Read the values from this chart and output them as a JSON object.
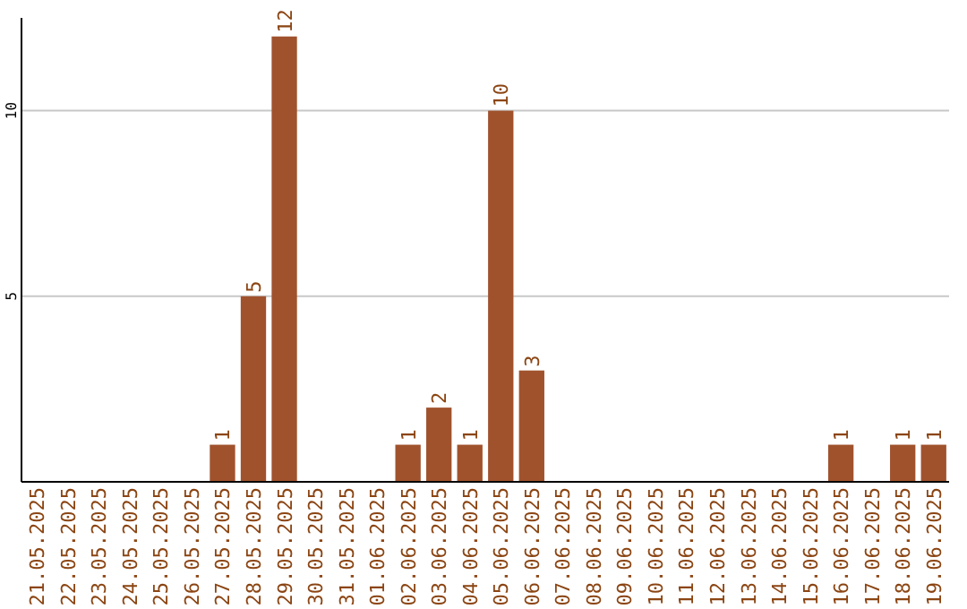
{
  "chart_data": {
    "type": "bar",
    "categories": [
      "21.05.2025",
      "22.05.2025",
      "23.05.2025",
      "24.05.2025",
      "25.05.2025",
      "26.05.2025",
      "27.05.2025",
      "28.05.2025",
      "29.05.2025",
      "30.05.2025",
      "31.05.2025",
      "01.06.2025",
      "02.06.2025",
      "03.06.2025",
      "04.06.2025",
      "05.06.2025",
      "06.06.2025",
      "07.06.2025",
      "08.06.2025",
      "09.06.2025",
      "10.06.2025",
      "11.06.2025",
      "12.06.2025",
      "13.06.2025",
      "14.06.2025",
      "15.06.2025",
      "16.06.2025",
      "17.06.2025",
      "18.06.2025",
      "19.06.2025"
    ],
    "values": [
      0,
      0,
      0,
      0,
      0,
      0,
      1,
      5,
      12,
      0,
      0,
      0,
      1,
      2,
      1,
      10,
      3,
      0,
      0,
      0,
      0,
      0,
      0,
      0,
      0,
      0,
      1,
      0,
      1,
      1
    ],
    "value_labels": [
      null,
      null,
      null,
      null,
      null,
      null,
      "1",
      "5",
      "12",
      null,
      null,
      null,
      "1",
      "2",
      "1",
      "10",
      "3",
      null,
      null,
      null,
      null,
      null,
      null,
      null,
      null,
      null,
      "1",
      null,
      "1",
      "1"
    ],
    "color": "#a0522d",
    "ylim": [
      0,
      12.5
    ],
    "yticks": [
      5,
      10
    ],
    "grid": "y"
  }
}
